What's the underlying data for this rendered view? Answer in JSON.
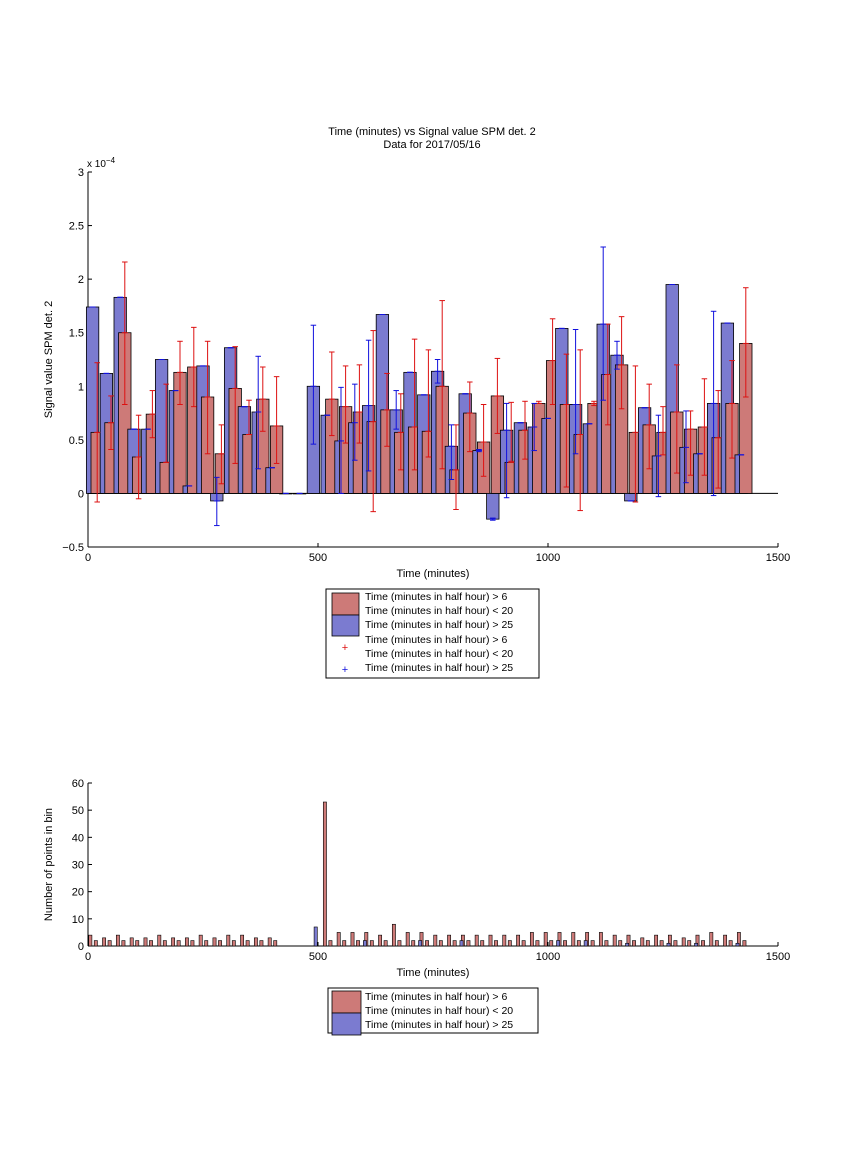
{
  "figure": {
    "title_line1": "Time (minutes) vs Signal value SPM det. 2",
    "title_line2": "Data for 2017/05/16",
    "exponent_label": "x 10",
    "exponent_power": "−4"
  },
  "legend_top": {
    "entries": [
      "Time (minutes in half hour) > 6",
      "Time (minutes in half hour) < 20",
      "Time (minutes in half hour) > 25",
      "Time (minutes in half hour) > 6",
      "Time (minutes in half hour) < 20",
      "Time (minutes in half hour) > 25"
    ],
    "marker": "+"
  },
  "legend_bottom": {
    "entries": [
      "Time (minutes in half hour) > 6",
      "Time (minutes in half hour) < 20",
      "Time (minutes in half hour) > 25"
    ]
  },
  "colors": {
    "red_bar": "#cd7a78",
    "blue_bar": "#7b7bd0",
    "red_line": "#dd1111",
    "blue_line": "#1111dd"
  },
  "chart_data": [
    {
      "type": "bar",
      "title": "Time (minutes) vs Signal value SPM det. 2",
      "subtitle": "Data for 2017/05/16",
      "xlabel": "Time (minutes)",
      "ylabel": "Signal value SPM det. 2",
      "xlim": [
        0,
        1500
      ],
      "ylim": [
        -0.5,
        3
      ],
      "y_multiplier": "1e-4",
      "xticks": [
        "0",
        "500",
        "1000",
        "1500"
      ],
      "yticks": [
        "−0.5",
        "0",
        "0.5",
        "1",
        "1.5",
        "2",
        "2.5",
        "3"
      ],
      "grid": false,
      "legend_position": "below",
      "series": [
        {
          "name": "Time (minutes in half hour) > 6",
          "color": "#cd7a78",
          "x": [
            20,
            50,
            80,
            110,
            140,
            170,
            200,
            230,
            260,
            290,
            320,
            350,
            380,
            410,
            530,
            560,
            590,
            620,
            650,
            680,
            710,
            740,
            770,
            800,
            830,
            860,
            890,
            920,
            950,
            980,
            1010,
            1040,
            1070,
            1100,
            1130,
            1160,
            1190,
            1220,
            1250,
            1280,
            1310,
            1340,
            1370,
            1400,
            1430
          ],
          "values": [
            0.57,
            0.66,
            1.5,
            0.34,
            0.74,
            0.29,
            1.13,
            1.18,
            0.9,
            0.37,
            0.98,
            0.55,
            0.88,
            0.63,
            0.88,
            0.81,
            0.76,
            0.67,
            0.78,
            0.57,
            0.62,
            0.58,
            1.0,
            0.22,
            0.75,
            0.48,
            0.91,
            0.29,
            0.59,
            0.84,
            1.24,
            0.83,
            0.55,
            0.84,
            1.11,
            1.2,
            0.57,
            0.64,
            0.57,
            0.76,
            0.6,
            0.62,
            0.52,
            0.84,
            1.4
          ],
          "err_low": [
            -0.08,
            0.41,
            0.83,
            -0.05,
            0.52,
            0.29,
            0.83,
            0.81,
            0.37,
            0.09,
            0.28,
            0.55,
            0.58,
            0.28,
            0.54,
            0.47,
            0.47,
            -0.17,
            0.44,
            0.22,
            0.22,
            0.34,
            0.23,
            -0.15,
            0.39,
            0.16,
            0.56,
            0.3,
            0.32,
            0.84,
            0.83,
            0.06,
            -0.16,
            0.82,
            0.64,
            0.79,
            -0.08,
            0.23,
            0.36,
            0.19,
            0.17,
            0.17,
            0.05,
            0.33,
            0.9
          ],
          "err_high": [
            1.22,
            0.91,
            2.16,
            0.73,
            0.96,
            1.02,
            1.42,
            1.55,
            1.42,
            0.64,
            1.37,
            0.87,
            1.18,
            1.09,
            1.32,
            1.19,
            1.2,
            1.52,
            1.12,
            0.93,
            1.44,
            1.34,
            1.8,
            0.64,
            1.04,
            0.83,
            1.26,
            0.85,
            0.86,
            0.86,
            1.63,
            1.3,
            1.34,
            0.86,
            1.58,
            1.65,
            1.19,
            1.02,
            0.81,
            1.2,
            0.77,
            1.07,
            0.96,
            1.24,
            1.92
          ]
        },
        {
          "name": "Time (minutes in half hour) > 25",
          "color": "#7b7bd0",
          "x": [
            10,
            40,
            70,
            100,
            130,
            160,
            190,
            220,
            250,
            280,
            310,
            340,
            370,
            400,
            430,
            460,
            490,
            520,
            550,
            580,
            610,
            640,
            670,
            700,
            730,
            760,
            790,
            820,
            850,
            880,
            910,
            940,
            970,
            1000,
            1030,
            1060,
            1090,
            1120,
            1150,
            1180,
            1210,
            1240,
            1270,
            1300,
            1330,
            1360,
            1390,
            1420
          ],
          "values": [
            1.74,
            1.12,
            1.83,
            0.6,
            0.6,
            1.25,
            0.96,
            0.07,
            1.19,
            -0.07,
            1.36,
            0.81,
            0.76,
            0.24,
            0.0,
            0.0,
            1.0,
            0.73,
            0.49,
            0.66,
            0.82,
            1.67,
            0.78,
            1.13,
            0.92,
            1.14,
            0.44,
            0.93,
            0.4,
            -0.24,
            0.59,
            0.66,
            0.62,
            0.7,
            1.54,
            0.83,
            0.65,
            1.58,
            1.29,
            -0.07,
            0.8,
            0.35,
            1.95,
            0.43,
            0.37,
            0.84,
            1.59,
            0.36
          ],
          "err_low": [
            1.74,
            1.12,
            1.83,
            0.6,
            0.6,
            1.25,
            0.96,
            0.07,
            1.19,
            -0.3,
            1.36,
            0.81,
            0.23,
            0.24,
            0.0,
            0.0,
            0.46,
            0.73,
            0.0,
            0.31,
            0.21,
            1.67,
            0.6,
            1.13,
            0.92,
            1.03,
            0.13,
            0.93,
            0.39,
            -0.25,
            -0.04,
            0.66,
            0.4,
            0.7,
            1.54,
            0.37,
            0.65,
            0.87,
            1.16,
            -0.07,
            0.8,
            -0.03,
            1.95,
            0.1,
            0.37,
            -0.02,
            1.59,
            0.36
          ],
          "err_high": [
            1.74,
            1.12,
            1.83,
            0.6,
            0.6,
            1.25,
            0.96,
            0.07,
            1.19,
            0.15,
            1.36,
            0.81,
            1.28,
            0.24,
            0.0,
            0.0,
            1.57,
            0.73,
            0.99,
            1.02,
            1.43,
            1.67,
            0.96,
            1.13,
            0.92,
            1.25,
            0.64,
            0.93,
            0.41,
            -0.23,
            0.84,
            0.66,
            0.84,
            0.7,
            1.54,
            1.53,
            0.65,
            2.3,
            1.42,
            -0.07,
            0.8,
            0.73,
            1.95,
            0.77,
            0.37,
            1.7,
            1.59,
            0.36
          ]
        }
      ]
    },
    {
      "type": "bar",
      "xlabel": "Time (minutes)",
      "ylabel": "Number of points in bin",
      "xlim": [
        0,
        1500
      ],
      "ylim": [
        0,
        60
      ],
      "xticks": [
        "0",
        "500",
        "1000",
        "1500"
      ],
      "yticks": [
        "0",
        "10",
        "20",
        "30",
        "40",
        "50",
        "60"
      ],
      "grid": false,
      "legend_position": "below",
      "series": [
        {
          "name": "Time (minutes in half hour) > 6",
          "color": "#cd7a78",
          "x": [
            5,
            35,
            65,
            95,
            125,
            155,
            185,
            215,
            245,
            275,
            305,
            335,
            365,
            395,
            515,
            545,
            575,
            605,
            635,
            665,
            695,
            725,
            755,
            785,
            815,
            845,
            875,
            905,
            935,
            965,
            995,
            1025,
            1055,
            1085,
            1115,
            1145,
            1175,
            1205,
            1235,
            1265,
            1295,
            1325,
            1355,
            1385,
            1415
          ],
          "values": [
            4,
            3,
            4,
            3,
            3,
            4,
            3,
            3,
            4,
            3,
            4,
            4,
            3,
            3,
            53,
            5,
            5,
            5,
            4,
            8,
            5,
            5,
            4,
            4,
            4,
            4,
            4,
            4,
            4,
            5,
            5,
            5,
            5,
            5,
            5,
            4,
            4,
            3,
            4,
            4,
            3,
            4,
            5,
            4,
            5
          ]
        },
        {
          "name": "Time (minutes in half hour) < 20",
          "color": "#cd7a78",
          "x": [
            17,
            47,
            77,
            107,
            137,
            167,
            197,
            227,
            257,
            287,
            317,
            347,
            377,
            407,
            527,
            557,
            587,
            617,
            647,
            677,
            707,
            737,
            767,
            797,
            827,
            857,
            887,
            917,
            947,
            977,
            1007,
            1037,
            1067,
            1097,
            1127,
            1157,
            1187,
            1217,
            1247,
            1277,
            1307,
            1337,
            1367,
            1397,
            1427
          ],
          "values": [
            2,
            2,
            2,
            2,
            2,
            2,
            2,
            2,
            2,
            2,
            2,
            2,
            2,
            2,
            2,
            2,
            2,
            2,
            2,
            2,
            2,
            2,
            2,
            2,
            2,
            2,
            2,
            2,
            2,
            2,
            2,
            2,
            2,
            2,
            2,
            2,
            2,
            2,
            2,
            2,
            2,
            2,
            2,
            2,
            2
          ]
        },
        {
          "name": "Time (minutes in half hour) > 25",
          "color": "#7b7bd0",
          "x": [
            495,
            602,
            722,
            812,
            1022,
            1082,
            1172,
            1262,
            1322,
            1412
          ],
          "values": [
            7,
            2,
            2,
            2,
            2,
            2,
            1,
            1,
            1,
            1
          ]
        }
      ]
    }
  ]
}
